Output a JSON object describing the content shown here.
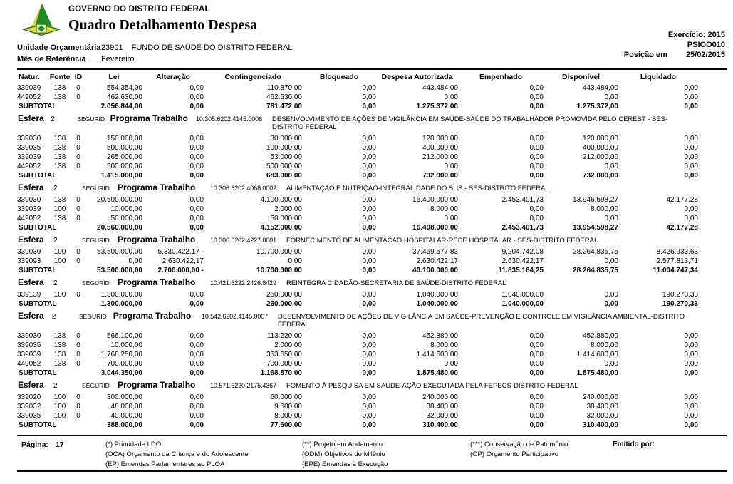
{
  "colors": {
    "logo_green": "#1f8b24",
    "logo_dark_green": "#156b1a",
    "logo_yellow": "#e3d33c"
  },
  "header": {
    "org": "GOVERNO DO DISTRITO FEDERAL",
    "title": "Quadro Detalhamento Despesa",
    "exercicio": "Exercício: 2015",
    "report_code": "PSIOO010",
    "posicao_label": "Posição em",
    "posicao_value": "25/02/2015",
    "unidade_label": "Unidade Orçamentária",
    "unidade_code": "23901",
    "unidade_name": "FUNDO DE SAÚDE DO DISTRITO FEDERAL",
    "mes_label": "Mês de Referência",
    "mes_value": "Fevereiro"
  },
  "table": {
    "columns": [
      "Natur.",
      "Fonte",
      "ID",
      "Lei",
      "Alteração",
      "Contingenciado",
      "Bloqueado",
      "Despesa Autorizada",
      "Empenhado",
      "Disponível",
      "Liquidado"
    ],
    "sections": [
      {
        "esfera": null,
        "rows": [
          [
            "339039",
            "138",
            "0",
            "554.354,00",
            "0,00",
            "110.870,00",
            "0,00",
            "443.484,00",
            "0,00",
            "443.484,00",
            "0,00"
          ],
          [
            "449052",
            "138",
            "0",
            "462.630,00",
            "0,00",
            "462.630,00",
            "0,00",
            "0,00",
            "0,00",
            "0,00",
            "0,00"
          ]
        ],
        "subtotal": [
          "SUBTOTAL",
          "2.056.844,00",
          "0,00",
          "781.472,00",
          "0,00",
          "1.275.372,00",
          "0,00",
          "1.275.372,00",
          "0,00"
        ]
      },
      {
        "esfera": {
          "label": "Esfera",
          "value": "2",
          "regime": "SEGURID",
          "pt_label": "Programa Trabalho",
          "pt_code": "10.305.6202.4145.0006",
          "pt_desc": "DESENVOLVIMENTO DE AÇÕES DE VIGILÂNCIA EM SAÚDE-SAÚDE DO TRABALHADOR PROMOVIDA PELO CEREST - SES-DISTRITO FEDERAL"
        },
        "rows": [
          [
            "339030",
            "138",
            "0",
            "150.000,00",
            "0,00",
            "30.000,00",
            "0,00",
            "120.000,00",
            "0,00",
            "120.000,00",
            "0,00"
          ],
          [
            "339035",
            "138",
            "0",
            "500.000,00",
            "0,00",
            "100.000,00",
            "0,00",
            "400.000,00",
            "0,00",
            "400.000,00",
            "0,00"
          ],
          [
            "339039",
            "138",
            "0",
            "265.000,00",
            "0,00",
            "53.000,00",
            "0,00",
            "212.000,00",
            "0,00",
            "212.000,00",
            "0,00"
          ],
          [
            "449052",
            "138",
            "0",
            "500.000,00",
            "0,00",
            "500.000,00",
            "0,00",
            "0,00",
            "0,00",
            "0,00",
            "0,00"
          ]
        ],
        "subtotal": [
          "SUBTOTAL",
          "1.415.000,00",
          "0,00",
          "683.000,00",
          "0,00",
          "732.000,00",
          "0,00",
          "732.000,00",
          "0,00"
        ]
      },
      {
        "esfera": {
          "label": "Esfera",
          "value": "2",
          "regime": "SEGURID",
          "pt_label": "Programa Trabalho",
          "pt_code": "10.306.6202.4068.0002",
          "pt_desc": "ALIMENTAÇÃO E NUTRIÇÃO-INTEGRALIDADE DO SUS - SES-DISTRITO FEDERAL"
        },
        "rows": [
          [
            "339030",
            "138",
            "0",
            "20.500.000,00",
            "0,00",
            "4.100.000,00",
            "0,00",
            "16.400.000,00",
            "2.453.401,73",
            "13.946.598,27",
            "42.177,28"
          ],
          [
            "339039",
            "100",
            "0",
            "10.000,00",
            "0,00",
            "2.000,00",
            "0,00",
            "8.000,00",
            "0,00",
            "8.000,00",
            "0,00"
          ],
          [
            "449052",
            "138",
            "0",
            "50.000,00",
            "0,00",
            "50.000,00",
            "0,00",
            "0,00",
            "0,00",
            "0,00",
            "0,00"
          ]
        ],
        "subtotal": [
          "SUBTOTAL",
          "20.560.000,00",
          "0,00",
          "4.152.000,00",
          "0,00",
          "16.408.000,00",
          "2.453.401,73",
          "13.954.598,27",
          "42.177,28"
        ]
      },
      {
        "esfera": {
          "label": "Esfera",
          "value": "2",
          "regime": "SEGURID",
          "pt_label": "Programa Trabalho",
          "pt_code": "10.306.6202.4227.0001",
          "pt_desc": "FORNECIMENTO DE ALIMENTAÇÃO HOSPITALAR-REDE HOSPITALAR - SES-DISTRITO FEDERAL"
        },
        "rows": [
          [
            "339039",
            "100",
            "0",
            "53.500.000,00",
            "5.330.422,17 -",
            "10.700.000,00",
            "0,00",
            "37.469.577,83",
            "9.204.742,08",
            "28.264.835,75",
            "8.426.933,63"
          ],
          [
            "339093",
            "100",
            "0",
            "0,00",
            "2.630.422,17",
            "0,00",
            "0,00",
            "2.630.422,17",
            "2.630.422,17",
            "0,00",
            "2.577.813,71"
          ]
        ],
        "subtotal": [
          "SUBTOTAL",
          "53.500.000,00",
          "2.700.000,00 -",
          "10.700.000,00",
          "0,00",
          "40.100.000,00",
          "11.835.164,25",
          "28.264.835,75",
          "11.004.747,34"
        ]
      },
      {
        "esfera": {
          "label": "Esfera",
          "value": "2",
          "regime": "SEGURID",
          "pt_label": "Programa Trabalho",
          "pt_code": "10.421.6222.2426.8429",
          "pt_desc": "REINTEGRA CIDADÃO-SECRETARIA DE SAÚDE-DISTRITO FEDERAL"
        },
        "rows": [
          [
            "339139",
            "100",
            "0",
            "1.300.000,00",
            "0,00",
            "260.000,00",
            "0,00",
            "1.040.000,00",
            "1.040.000,00",
            "0,00",
            "190.270,33"
          ]
        ],
        "subtotal": [
          "SUBTOTAL",
          "1.300.000,00",
          "0,00",
          "260.000,00",
          "0,00",
          "1.040.000,00",
          "1.040.000,00",
          "0,00",
          "190.270,33"
        ]
      },
      {
        "esfera": {
          "label": "Esfera",
          "value": "2",
          "regime": "SEGURID",
          "pt_label": "Programa Trabalho",
          "pt_code": "10.542.6202.4145.0007",
          "pt_desc": "DESENVOLVIMENTO DE AÇÕES DE VIGILÂNCIA EM SAÚDE-PREVENÇÃO E CONTROLE EM VIGILÂNCIA AMBIENTAL-DISTRITO FEDERAL"
        },
        "rows": [
          [
            "339030",
            "138",
            "0",
            "566.100,00",
            "0,00",
            "113.220,00",
            "0,00",
            "452.880,00",
            "0,00",
            "452.880,00",
            "0,00"
          ],
          [
            "339035",
            "138",
            "0",
            "10.000,00",
            "0,00",
            "2.000,00",
            "0,00",
            "8.000,00",
            "0,00",
            "8.000,00",
            "0,00"
          ],
          [
            "339039",
            "138",
            "0",
            "1.768.250,00",
            "0,00",
            "353.650,00",
            "0,00",
            "1.414.600,00",
            "0,00",
            "1.414.600,00",
            "0,00"
          ],
          [
            "449052",
            "138",
            "0",
            "700.000,00",
            "0,00",
            "700.000,00",
            "0,00",
            "0,00",
            "0,00",
            "0,00",
            "0,00"
          ]
        ],
        "subtotal": [
          "SUBTOTAL",
          "3.044.350,00",
          "0,00",
          "1.168.870,00",
          "0,00",
          "1.875.480,00",
          "0,00",
          "1.875.480,00",
          "0,00"
        ]
      },
      {
        "esfera": {
          "label": "Esfera",
          "value": "2",
          "regime": "SEGURID",
          "pt_label": "Programa Trabalho",
          "pt_code": "10.571.6220.2175.4367",
          "pt_desc": "FOMENTO À PESQUISA EM SAÚDE-AÇÃO EXECUTADA PELA FEPECS-DISTRITO FEDERAL"
        },
        "rows": [
          [
            "339020",
            "100",
            "0",
            "300.000,00",
            "0,00",
            "60.000,00",
            "0,00",
            "240.000,00",
            "0,00",
            "240.000,00",
            "0,00"
          ],
          [
            "339032",
            "100",
            "0",
            "48.000,00",
            "0,00",
            "9.600,00",
            "0,00",
            "38.400,00",
            "0,00",
            "38.400,00",
            "0,00"
          ],
          [
            "339035",
            "100",
            "0",
            "40.000,00",
            "0,00",
            "8.000,00",
            "0,00",
            "32.000,00",
            "0,00",
            "32.000,00",
            "0,00"
          ]
        ],
        "subtotal": [
          "SUBTOTAL",
          "388.000,00",
          "0,00",
          "77.600,00",
          "0,00",
          "310.400,00",
          "0,00",
          "310.400,00",
          "0,00"
        ]
      }
    ]
  },
  "footer": {
    "pagina_label": "Página:",
    "pagina_value": "17",
    "legend_col1": [
      "(*)  Prioridade LDO",
      "(OCA)  Orçamento da Criança e do Adolescente",
      "(EP)  Emendas Parlamentares ao PLOA"
    ],
    "legend_col2": [
      "(**)  Projeto em Andamento",
      "(ODM) Objetivos do Milênio",
      "(EPE) Emendas à Execução"
    ],
    "legend_col3": [
      "(***)  Conservação de Patrimônio",
      "(OP) Orçamento Participativo"
    ],
    "emitido_label": "Emitido por:"
  }
}
